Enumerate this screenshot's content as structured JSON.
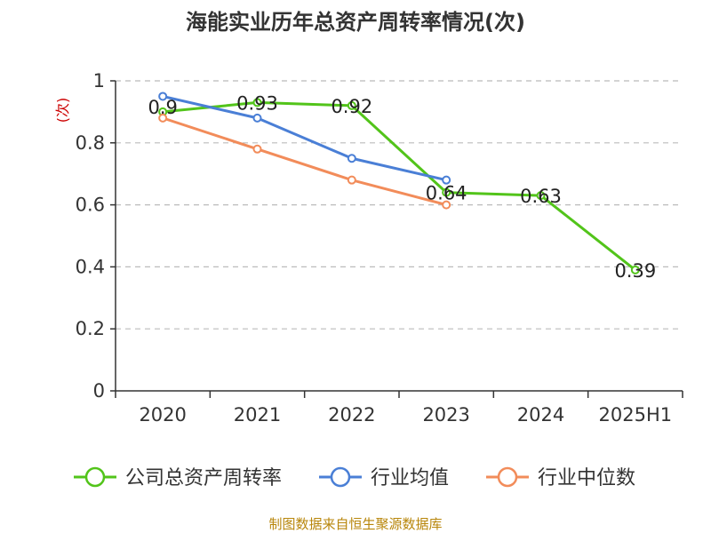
{
  "chart_data": {
    "type": "line",
    "title": "海能实业历年总资产周转率情况(次)",
    "ylabel": "(次)",
    "categories": [
      "2020",
      "2021",
      "2022",
      "2023",
      "2024",
      "2025H1"
    ],
    "ylim": [
      0,
      1
    ],
    "yticks": [
      "0",
      "0.2",
      "0.4",
      "0.6",
      "0.8",
      "1"
    ],
    "grid": true,
    "legend_position": "bottom",
    "series": [
      {
        "name": "公司总资产周转率",
        "color": "#52c41a",
        "values": [
          0.9,
          0.93,
          0.92,
          0.64,
          0.63,
          0.39
        ],
        "labels": [
          "0.9",
          "0.93",
          "0.92",
          "0.64",
          "0.63",
          "0.39"
        ]
      },
      {
        "name": "行业均值",
        "color": "#4a7fd6",
        "values": [
          0.95,
          0.88,
          0.75,
          0.68,
          null,
          null
        ]
      },
      {
        "name": "行业中位数",
        "color": "#f28c5a",
        "values": [
          0.88,
          0.78,
          0.68,
          0.6,
          null,
          null
        ]
      }
    ]
  },
  "source": "制图数据来自恒生聚源数据库"
}
